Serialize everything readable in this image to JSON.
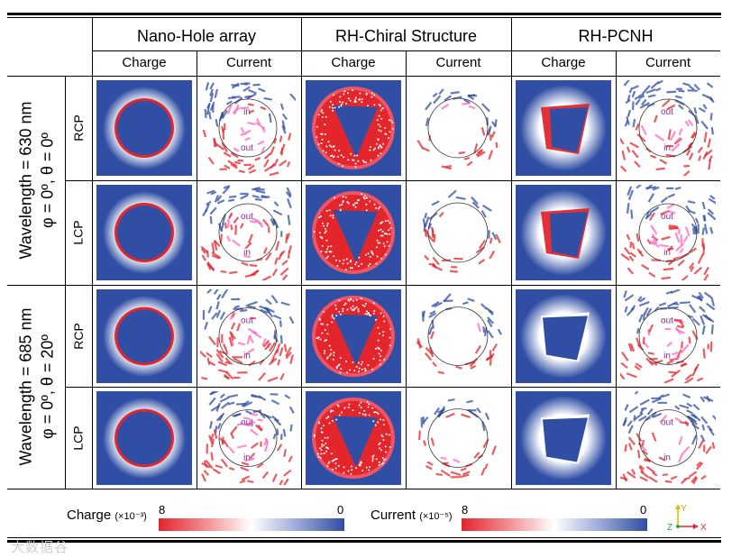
{
  "columns": [
    {
      "group": "Nano-Hole array",
      "subs": [
        "Charge",
        "Current"
      ]
    },
    {
      "group": "RH-Chiral Structure",
      "subs": [
        "Charge",
        "Current"
      ]
    },
    {
      "group": "RH-PCNH",
      "subs": [
        "Charge",
        "Current"
      ]
    }
  ],
  "row_groups": [
    {
      "line1": "Wavelength = 630 nm",
      "line2": "φ = 0º, θ = 0º",
      "rows": [
        "RCP",
        "LCP"
      ]
    },
    {
      "line1": "Wavelength = 685 nm",
      "line2": "φ = 0º, θ = 20º",
      "rows": [
        "RCP",
        "LCP"
      ]
    }
  ],
  "current_labels": {
    "r0c1": [
      "in",
      "out"
    ],
    "r1c1": [
      "out",
      "in"
    ],
    "r2c1": [
      "out",
      "in"
    ],
    "r3c1": [
      "out",
      "in"
    ],
    "r0c5": [
      "out",
      "in"
    ],
    "r1c5": [
      "out",
      "in"
    ],
    "r2c5": [
      "out",
      "in"
    ],
    "r3c5": [
      "out",
      "in"
    ]
  },
  "colorbars": {
    "charge": {
      "label": "Charge",
      "unit": "(×10⁻³)",
      "max": "8",
      "min": "0"
    },
    "current": {
      "label": "Current",
      "unit": "(×10⁻⁵)",
      "max": "8",
      "min": "0"
    }
  },
  "axes": {
    "y": "Y",
    "z": "Z",
    "x": "X"
  },
  "watermark": "大数据谷",
  "colors": {
    "red": "#e3262c",
    "blue": "#2f4ea4",
    "label": "#8a2a9e"
  }
}
